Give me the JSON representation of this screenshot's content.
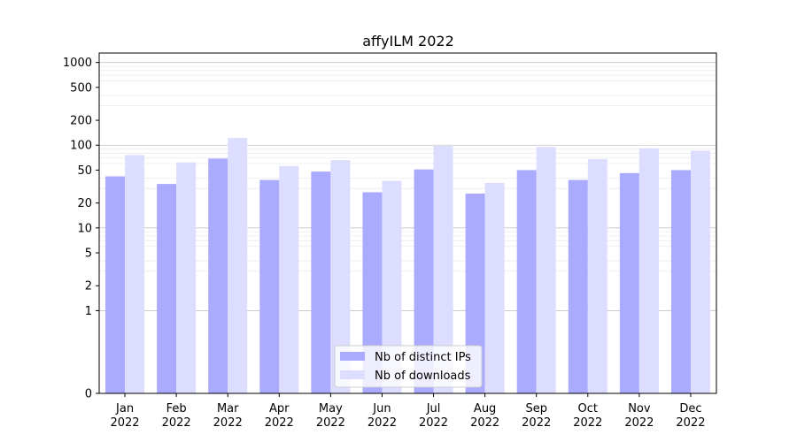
{
  "chart_data": {
    "type": "bar",
    "title": "affyILM 2022",
    "xlabel": "",
    "ylabel": "",
    "y_scale": "symlog",
    "ylim": [
      0,
      1300
    ],
    "grid": true,
    "legend_placement": "bottom-center",
    "categories": [
      [
        "Jan",
        "2022"
      ],
      [
        "Feb",
        "2022"
      ],
      [
        "Mar",
        "2022"
      ],
      [
        "Apr",
        "2022"
      ],
      [
        "May",
        "2022"
      ],
      [
        "Jun",
        "2022"
      ],
      [
        "Jul",
        "2022"
      ],
      [
        "Aug",
        "2022"
      ],
      [
        "Sep",
        "2022"
      ],
      [
        "Oct",
        "2022"
      ],
      [
        "Nov",
        "2022"
      ],
      [
        "Dec",
        "2022"
      ]
    ],
    "y_ticks": [
      0,
      1,
      2,
      5,
      10,
      20,
      50,
      100,
      200,
      500,
      1000
    ],
    "series": [
      {
        "name": "Nb of distinct IPs",
        "color": "#aaaaff",
        "values": [
          42,
          34,
          69,
          38,
          48,
          27,
          51,
          26,
          50,
          38,
          46,
          50
        ]
      },
      {
        "name": "Nb of downloads",
        "color": "#ddddff",
        "values": [
          76,
          62,
          122,
          56,
          66,
          37,
          98,
          35,
          95,
          68,
          92,
          86
        ]
      }
    ]
  }
}
